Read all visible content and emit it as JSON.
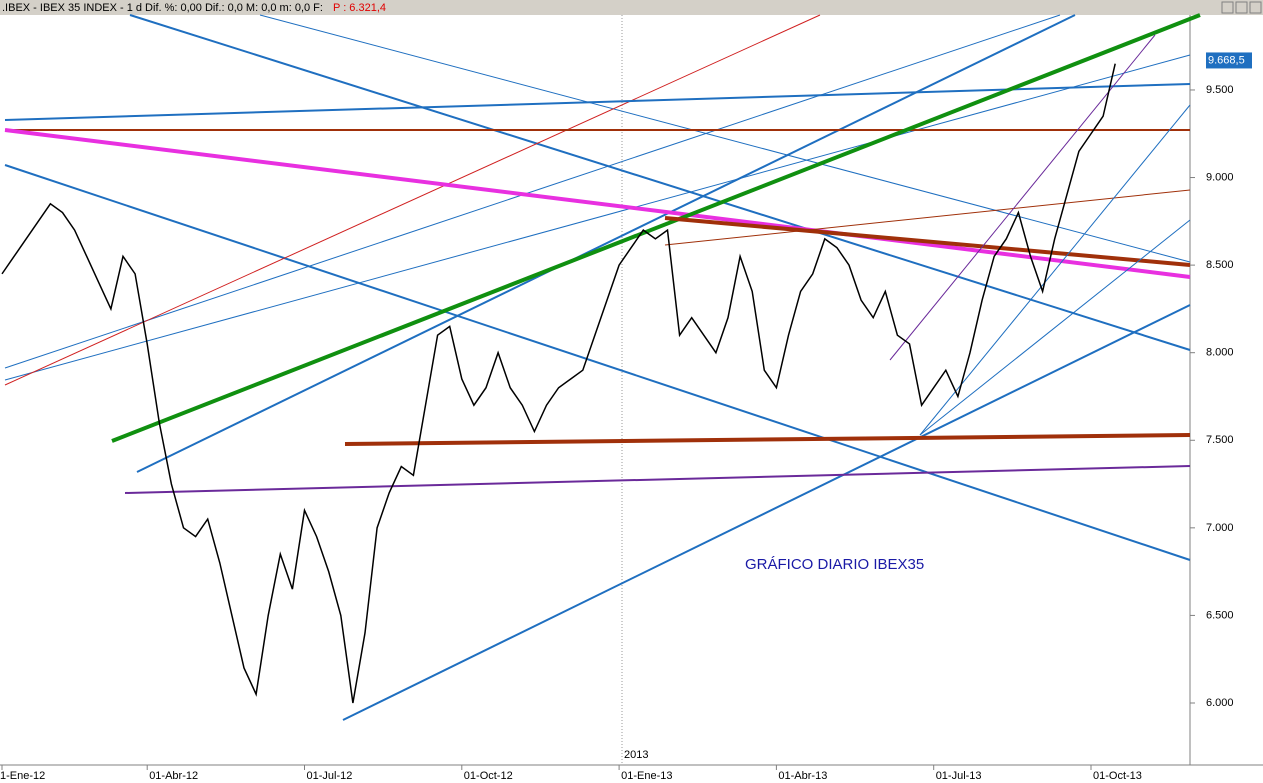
{
  "chart_data": {
    "type": "line",
    "header": ".IBEX - IBEX 35 INDEX - 1 d Dif. %: 0,00 Dif.: 0,0 M: 0,0 m: 0,0 F:",
    "header_price": "P : 6.321,4",
    "annotation": "GRÁFICO DIARIO IBEX35",
    "year_label": "2013",
    "color": "#000000",
    "categories": [
      "1-Ene-12",
      null,
      null,
      null,
      null,
      null,
      null,
      null,
      null,
      null,
      null,
      null,
      "01-Abr-12",
      null,
      null,
      null,
      null,
      null,
      null,
      null,
      null,
      null,
      null,
      null,
      null,
      "01-Jul-12",
      null,
      null,
      null,
      null,
      null,
      null,
      null,
      null,
      null,
      null,
      null,
      null,
      "01-Oct-12",
      null,
      null,
      null,
      null,
      null,
      null,
      null,
      null,
      null,
      null,
      null,
      null,
      "01-Ene-13",
      null,
      null,
      null,
      null,
      null,
      null,
      null,
      null,
      null,
      null,
      null,
      null,
      "01-Abr-13",
      null,
      null,
      null,
      null,
      null,
      null,
      null,
      null,
      null,
      null,
      null,
      null,
      "01-Jul-13",
      null,
      null,
      null,
      null,
      null,
      null,
      null,
      null,
      null,
      null,
      null,
      null,
      "01-Oct-13",
      null,
      null
    ],
    "values": [
      8450,
      8550,
      8650,
      8750,
      8850,
      8800,
      8700,
      8550,
      8400,
      8250,
      8550,
      8450,
      8050,
      7600,
      7250,
      7000,
      6950,
      7050,
      6800,
      6500,
      6200,
      6050,
      6500,
      6850,
      6650,
      7100,
      6950,
      6750,
      6500,
      6000,
      6400,
      7000,
      7200,
      7350,
      7300,
      7700,
      8100,
      8150,
      7850,
      7700,
      7800,
      8000,
      7800,
      7700,
      7550,
      7700,
      7800,
      7850,
      7900,
      8100,
      8300,
      8500,
      8600,
      8700,
      8650,
      8700,
      8100,
      8200,
      8100,
      8000,
      8200,
      8550,
      8350,
      7900,
      7800,
      8100,
      8350,
      8450,
      8650,
      8600,
      8500,
      8300,
      8200,
      8350,
      8100,
      8050,
      7700,
      7800,
      7900,
      7750,
      8000,
      8300,
      8550,
      8650,
      8800,
      8550,
      8350,
      8650,
      8900,
      9150,
      9250,
      9350,
      9650
    ],
    "ylim": [
      5646,
      9928
    ],
    "yticks": [
      {
        "value": 6000,
        "label": "6.000"
      },
      {
        "value": 6500,
        "label": "6.500"
      },
      {
        "value": 7000,
        "label": "7.000"
      },
      {
        "value": 7500,
        "label": "7.500"
      },
      {
        "value": 8000,
        "label": "8.000"
      },
      {
        "value": 8500,
        "label": "8.500"
      },
      {
        "value": 9000,
        "label": "9.000"
      },
      {
        "value": 9500,
        "label": "9.500"
      }
    ],
    "last_value": {
      "value": 9668.5,
      "label": "9.668,5"
    }
  }
}
